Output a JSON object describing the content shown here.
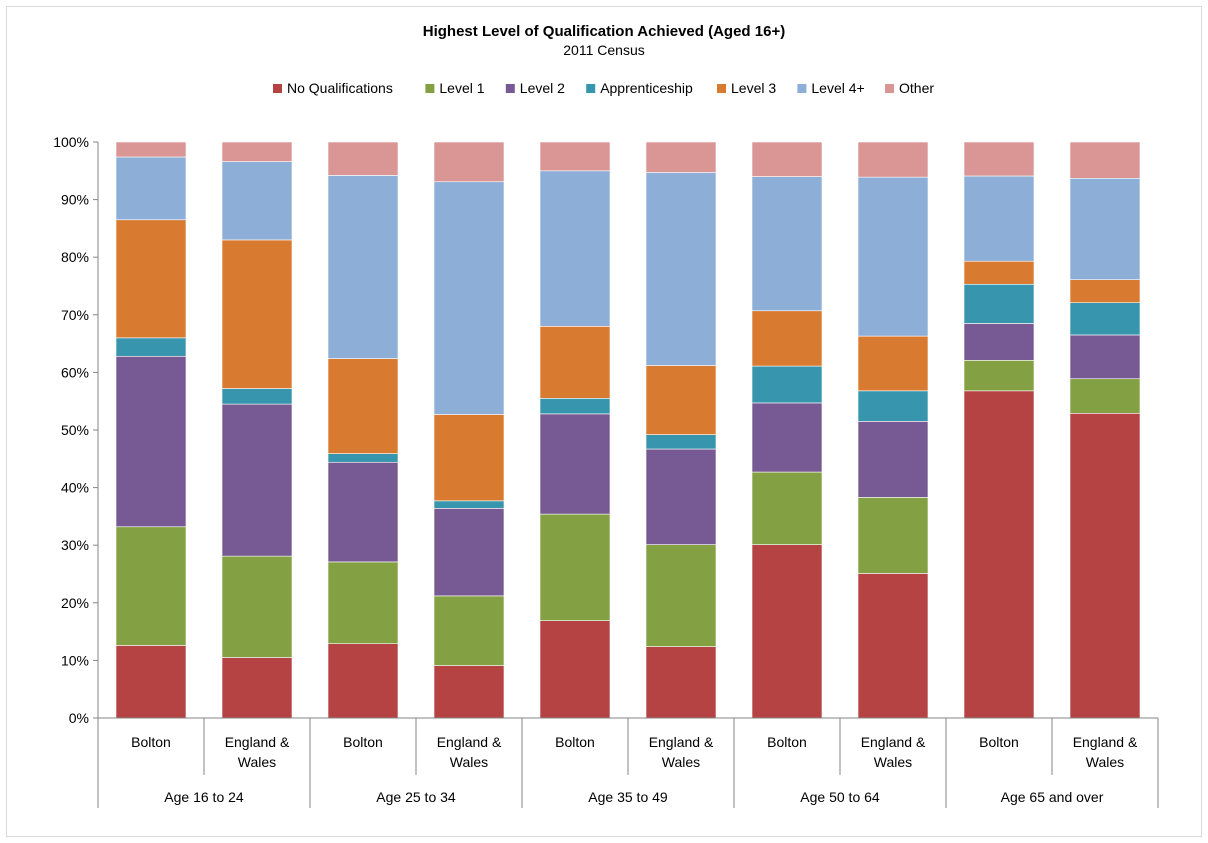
{
  "chart_data": {
    "type": "bar",
    "stacked": true,
    "title": "Highest Level of Qualification Achieved (Aged 16+)",
    "subtitle": "2011 Census",
    "ylim": [
      0,
      100
    ],
    "y_ticks": [
      "0%",
      "10%",
      "20%",
      "30%",
      "40%",
      "50%",
      "60%",
      "70%",
      "80%",
      "90%",
      "100%"
    ],
    "legend_position": "top",
    "grid": false,
    "groups": [
      "Age 16 to 24",
      "Age 25 to 34",
      "Age 35 to 49",
      "Age 50 to 64",
      "Age 65 and over"
    ],
    "categories": [
      [
        "Bolton"
      ],
      [
        "England &",
        "Wales"
      ],
      [
        "Bolton"
      ],
      [
        "England &",
        "Wales"
      ],
      [
        "Bolton"
      ],
      [
        "England &",
        "Wales"
      ],
      [
        "Bolton"
      ],
      [
        "England &",
        "Wales"
      ],
      [
        "Bolton"
      ],
      [
        "England &",
        "Wales"
      ]
    ],
    "series": [
      {
        "name": "No Qualifications",
        "color": "#b54343",
        "values": [
          12.6,
          10.5,
          12.9,
          9.1,
          16.9,
          12.4,
          30.1,
          25.1,
          56.8,
          52.9
        ]
      },
      {
        "name": "Level 1",
        "color": "#83a142",
        "values": [
          20.6,
          17.6,
          14.2,
          12.1,
          18.5,
          17.7,
          12.6,
          13.2,
          5.3,
          6.0
        ]
      },
      {
        "name": "Level 2",
        "color": "#775a93",
        "values": [
          29.6,
          26.4,
          17.3,
          15.2,
          17.4,
          16.6,
          12.0,
          13.2,
          6.4,
          7.6
        ]
      },
      {
        "name": "Apprenticeship",
        "color": "#3795ad",
        "values": [
          3.2,
          2.7,
          1.5,
          1.3,
          2.7,
          2.5,
          6.4,
          5.3,
          6.8,
          5.6
        ]
      },
      {
        "name": "Level 3",
        "color": "#d87a30",
        "values": [
          20.5,
          25.8,
          16.5,
          15.0,
          12.5,
          12.0,
          9.6,
          9.5,
          4.0,
          4.0
        ]
      },
      {
        "name": "Level 4+",
        "color": "#8daed6",
        "values": [
          10.9,
          13.6,
          31.8,
          40.4,
          27.0,
          33.5,
          23.3,
          27.6,
          14.8,
          17.6
        ]
      },
      {
        "name": "Other",
        "color": "#da9595",
        "values": [
          2.6,
          3.4,
          5.8,
          6.9,
          5.0,
          5.3,
          6.0,
          6.1,
          5.9,
          6.3
        ]
      }
    ]
  }
}
